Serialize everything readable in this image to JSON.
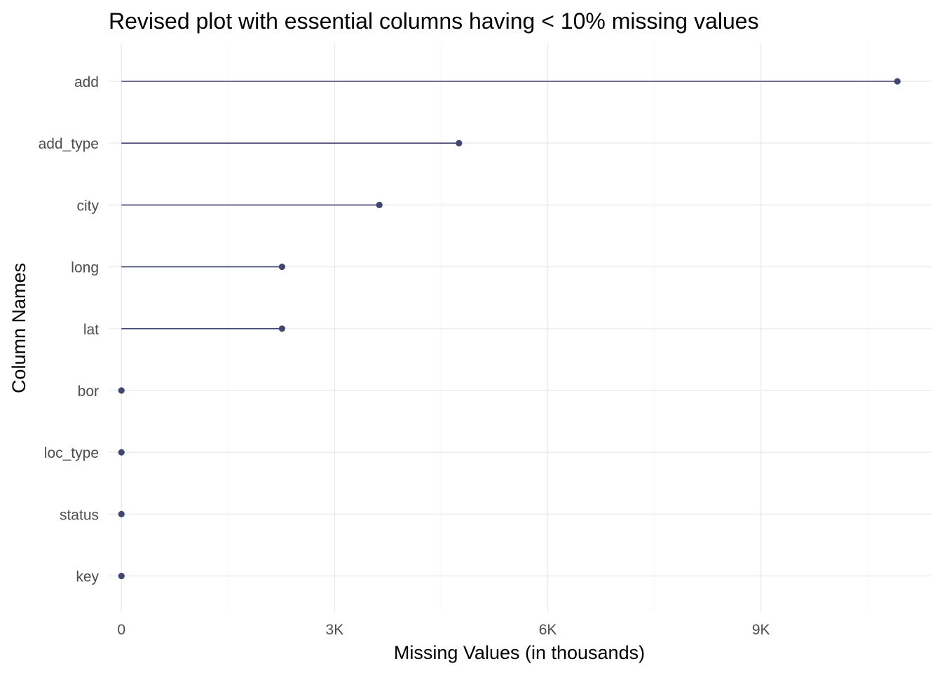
{
  "colors": {
    "segment": "#414770",
    "point": "#414770",
    "grid_major": "#ebebeb",
    "grid_minor": "#f4f4f4",
    "tick_text": "#4d4d4d",
    "title_text": "#000000",
    "background": "#ffffff"
  },
  "chart_data": {
    "type": "lollipop",
    "title": "Revised plot with essential columns having < 10% missing values",
    "xlabel": "Missing Values (in thousands)",
    "ylabel": "Column Names",
    "xlim": [
      -180,
      11400
    ],
    "x_ticks": [
      {
        "value": 0,
        "label": "0"
      },
      {
        "value": 3000,
        "label": "3K"
      },
      {
        "value": 6000,
        "label": "6K"
      },
      {
        "value": 9000,
        "label": "9K"
      }
    ],
    "x_minor_ticks": [
      1500,
      4500,
      7500,
      10500
    ],
    "categories": [
      "add",
      "add_type",
      "city",
      "long",
      "lat",
      "bor",
      "loc_type",
      "status",
      "key"
    ],
    "values": [
      10920,
      4750,
      3630,
      2260,
      2260,
      0,
      0,
      0,
      0
    ],
    "grid": true,
    "legend": "none"
  }
}
